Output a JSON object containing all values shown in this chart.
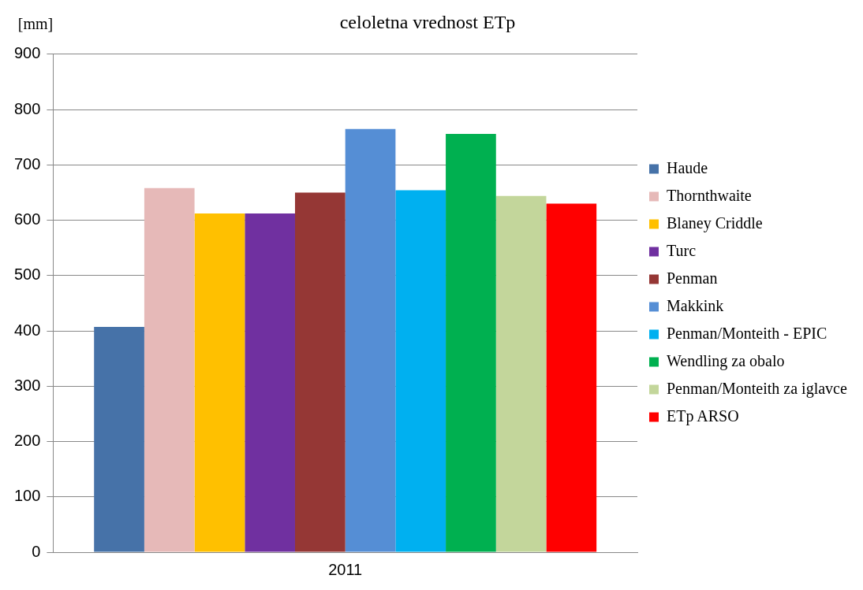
{
  "chart_data": {
    "type": "bar",
    "title": "celoletna vrednost ETp",
    "ylabel": "[mm]",
    "categories": [
      "2011"
    ],
    "series": [
      {
        "name": "Haude",
        "color": "#4672a8",
        "values": [
          407
        ]
      },
      {
        "name": "Thornthwaite",
        "color": "#e6b9b8",
        "values": [
          658
        ]
      },
      {
        "name": "Blaney Criddle",
        "color": "#ffc000",
        "values": [
          612
        ]
      },
      {
        "name": "Turc",
        "color": "#7030a0",
        "values": [
          612
        ]
      },
      {
        "name": "Penman",
        "color": "#953735",
        "values": [
          650
        ]
      },
      {
        "name": "Makkink",
        "color": "#558ed5",
        "values": [
          765
        ]
      },
      {
        "name": "Penman/Monteith - EPIC",
        "color": "#00b0f0",
        "values": [
          654
        ]
      },
      {
        "name": "Wendling za obalo",
        "color": "#00b050",
        "values": [
          756
        ]
      },
      {
        "name": "Penman/Monteith za iglavce",
        "color": "#c3d69b",
        "values": [
          644
        ]
      },
      {
        "name": "ETp ARSO",
        "color": "#ff0000",
        "values": [
          630
        ]
      }
    ],
    "ylim": [
      0,
      900
    ],
    "yticks": [
      0,
      100,
      200,
      300,
      400,
      500,
      600,
      700,
      800,
      900
    ],
    "grid": "y",
    "legend": "right"
  }
}
